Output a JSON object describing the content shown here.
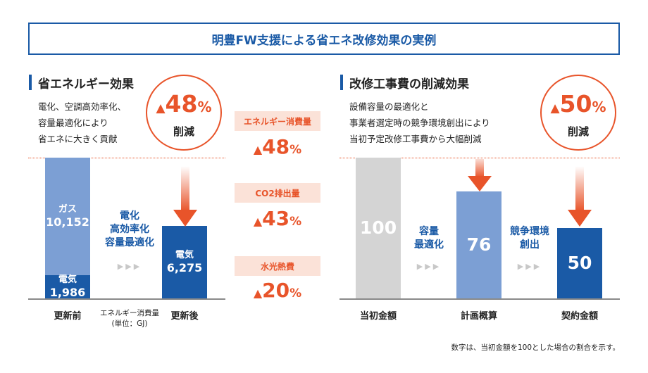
{
  "banner": {
    "title": "明豊FW支援による省エネ改修効果の実例"
  },
  "left": {
    "title": "省エネルギー効果",
    "desc": [
      "電化、空調高効率化、",
      "容量最適化により",
      "省エネに大きく貢献"
    ],
    "badge": {
      "symbol": "▲",
      "value": "48",
      "unit": "%",
      "word": "削減"
    },
    "middle_text": [
      "電化",
      "高効率化",
      "容量最適化"
    ],
    "chevrons": "▶▶▶",
    "axis_note": [
      "エネルギー消費量",
      "(単位：GJ)"
    ]
  },
  "center": {
    "items": [
      {
        "label": "エネルギー消費量",
        "symbol": "▲",
        "value": "48",
        "unit": "%"
      },
      {
        "label": "CO2排出量",
        "symbol": "▲",
        "value": "43",
        "unit": "%"
      },
      {
        "label": "水光熱費",
        "symbol": "▲",
        "value": "20",
        "unit": "%"
      }
    ]
  },
  "right": {
    "title": "改修工事費の削減効果",
    "desc": [
      "設備容量の最適化と",
      "事業者選定時の競争環境創出により",
      "当初予定改修工事費から大幅削減"
    ],
    "badge": {
      "symbol": "▲",
      "value": "50",
      "unit": "%",
      "word": "削減"
    },
    "mid1": [
      "容量",
      "最適化"
    ],
    "mid2": [
      "競争環境",
      "創出"
    ],
    "chevrons": "▶▶▶"
  },
  "footnote": "数字は、当初金額を100とした場合の割合を示す。",
  "colors": {
    "brand_blue": "#1a5aa6",
    "light_blue": "#7c9fd4",
    "gray_bar": "#d4d4d4",
    "accent_orange": "#e8542a",
    "pill_bg": "#fbe2d8"
  },
  "chart_data": [
    {
      "type": "bar",
      "stacked": true,
      "categories": [
        "更新前",
        "更新後"
      ],
      "series": [
        {
          "name": "電気",
          "values": [
            1986,
            6275
          ],
          "display": [
            "1,986",
            "6,275"
          ]
        },
        {
          "name": "ガス",
          "values": [
            10152,
            0
          ],
          "display": [
            "10,152",
            ""
          ]
        }
      ],
      "xlabel": "エネルギー消費量",
      "ylabel": "",
      "unit": "(単位：GJ)",
      "ylim": [
        0,
        12138
      ]
    },
    {
      "type": "bar",
      "categories": [
        "当初金額",
        "計画概算",
        "契約金額"
      ],
      "values": [
        100,
        76,
        50
      ],
      "ylim": [
        0,
        100
      ]
    }
  ]
}
